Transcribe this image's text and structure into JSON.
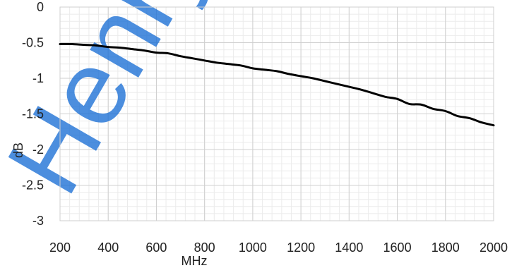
{
  "chart_data": {
    "type": "line",
    "xlabel": "MHz",
    "ylabel": "dB",
    "xlim": [
      200,
      2000
    ],
    "ylim": [
      -3,
      0
    ],
    "x_ticks": [
      200,
      400,
      600,
      800,
      1000,
      1200,
      1400,
      1600,
      1800,
      2000
    ],
    "y_ticks": [
      0,
      -0.5,
      -1,
      -1.5,
      -2,
      -2.5,
      -3
    ],
    "x_tick_labels": [
      "200",
      "400",
      "600",
      "800",
      "1000",
      "1200",
      "1400",
      "1600",
      "1800",
      "2000"
    ],
    "y_tick_labels": [
      "0",
      "-0.5",
      "-1",
      "-1.5",
      "-2",
      "-2.5",
      "-3"
    ],
    "grid": "major and minor",
    "watermark": "Henry",
    "line_color": "#000000",
    "watermark_color": "#1a6fd6",
    "series": [
      {
        "x": [
          200,
          250,
          300,
          350,
          400,
          450,
          500,
          550,
          600,
          650,
          700,
          750,
          800,
          850,
          900,
          950,
          1000,
          1050,
          1100,
          1150,
          1200,
          1250,
          1300,
          1350,
          1400,
          1450,
          1500,
          1550,
          1600,
          1650,
          1700,
          1750,
          1800,
          1850,
          1900,
          1950,
          2000
        ],
        "y": [
          -0.52,
          -0.52,
          -0.53,
          -0.54,
          -0.56,
          -0.57,
          -0.59,
          -0.61,
          -0.64,
          -0.65,
          -0.69,
          -0.72,
          -0.75,
          -0.78,
          -0.8,
          -0.82,
          -0.86,
          -0.88,
          -0.9,
          -0.94,
          -0.97,
          -1.0,
          -1.04,
          -1.08,
          -1.12,
          -1.16,
          -1.21,
          -1.26,
          -1.29,
          -1.36,
          -1.37,
          -1.43,
          -1.46,
          -1.53,
          -1.56,
          -1.62,
          -1.66
        ]
      }
    ]
  }
}
